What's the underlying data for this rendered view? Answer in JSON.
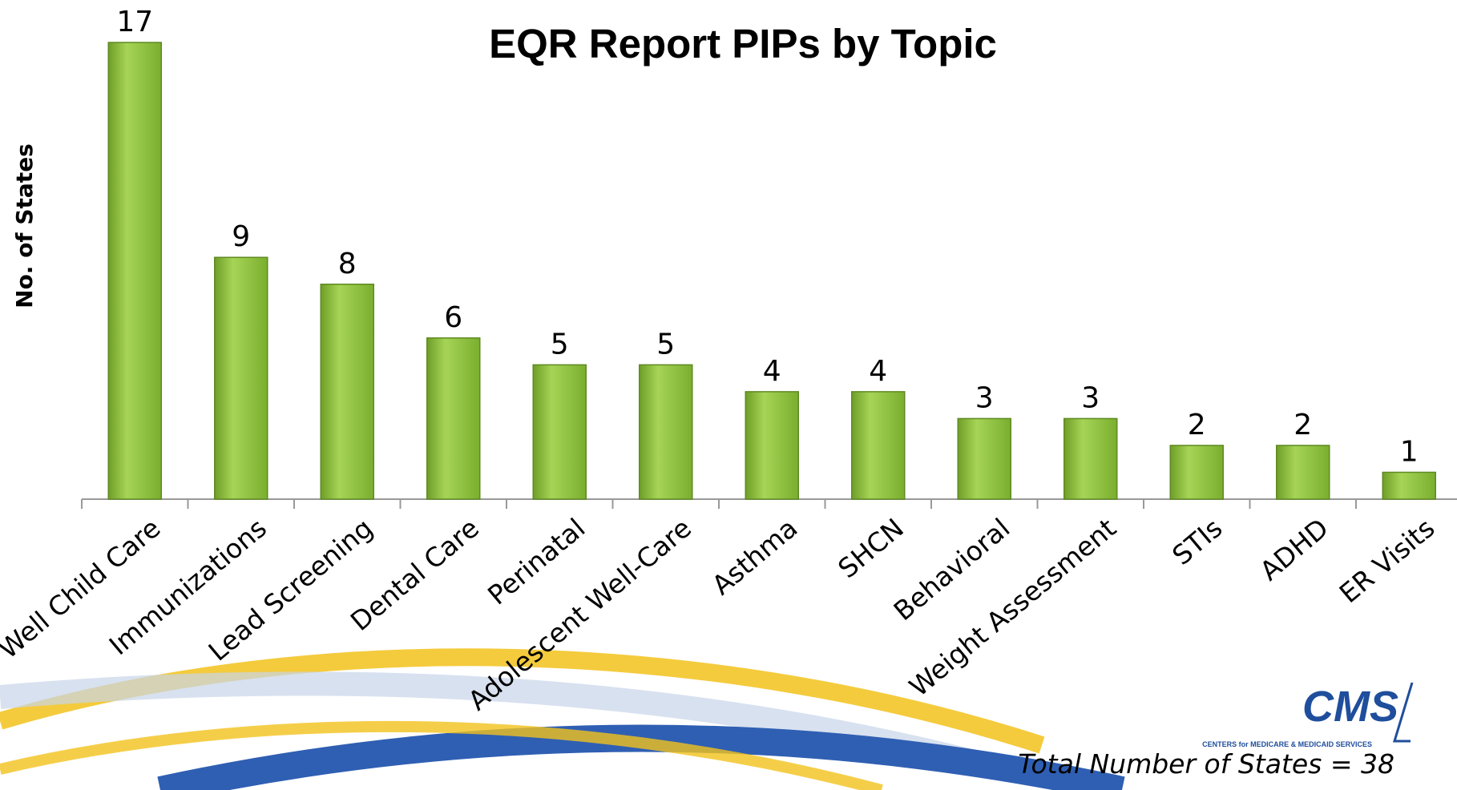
{
  "chart_data": {
    "type": "bar",
    "title": "EQR Report PIPs by Topic",
    "y_label": "No. of States",
    "categories": [
      "Well Child Care",
      "Immunizations",
      "Lead Screening",
      "Dental Care",
      "Perinatal",
      "Adolescent Well-Care",
      "Asthma",
      "SHCN",
      "Behavioral",
      "Weight Assessment",
      "STIs",
      "ADHD",
      "ER Visits"
    ],
    "values": [
      17,
      9,
      8,
      6,
      5,
      5,
      4,
      4,
      3,
      3,
      2,
      2,
      1
    ],
    "color": "#8cc43c",
    "ylim": [
      0,
      17
    ],
    "annotation": "Total Number of States = 38",
    "logo": {
      "name": "CMS",
      "subtitle": "CENTERS for MEDICARE & MEDICAID SERVICES"
    }
  }
}
